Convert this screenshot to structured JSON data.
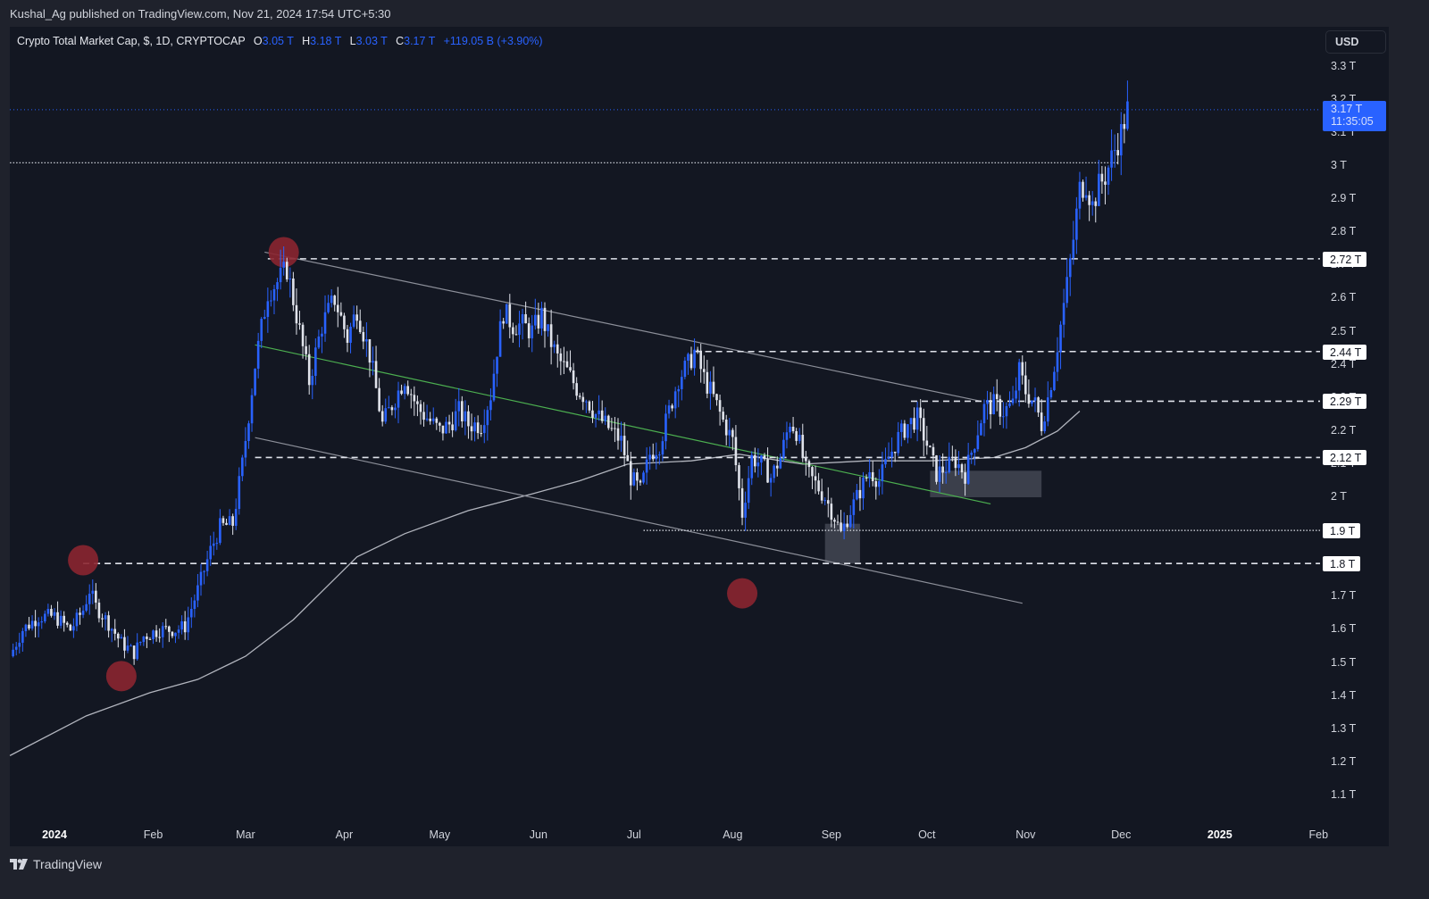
{
  "publisher": "Kushal_Ag published on TradingView.com, Nov 21, 2024 17:54 UTC+5:30",
  "legend": {
    "symbol": "Crypto Total Market Cap, $, 1D, CRYPTOCAP",
    "open_label": "O",
    "open": "3.05 T",
    "high_label": "H",
    "high": "3.18 T",
    "low_label": "L",
    "low": "3.03 T",
    "close_label": "C",
    "close": "3.17 T",
    "change": "+119.05 B (+3.90%)"
  },
  "currency_button": "USD",
  "last_price_tag": {
    "price": "3.17 T",
    "countdown": "11:35:05"
  },
  "colors": {
    "background": "#131722",
    "frame": "#1f222c",
    "up_candle": "#2962ff",
    "down_candle": "#e0e3eb",
    "marker": "#8b2530",
    "ma_line": "#b2b5be",
    "channel_line": "#8c8f99",
    "mid_line": "#4caf50",
    "level_line": "#e0e3eb",
    "zone_box": "#4a4e59"
  },
  "footer": {
    "brand": "TradingView"
  },
  "chart_data": {
    "type": "candlestick",
    "title": "Crypto Total Market Cap, $, 1D, CRYPTOCAP",
    "xlabel": "",
    "ylabel": "USD",
    "ylim": [
      1.05,
      3.35
    ],
    "y_ticks": [
      "3.3 T",
      "3.2 T",
      "3.1 T",
      "3 T",
      "2.9 T",
      "2.8 T",
      "2.7 T",
      "2.6 T",
      "2.5 T",
      "2.4 T",
      "2.3 T",
      "2.2 T",
      "2.1 T",
      "2 T",
      "1.9 T",
      "1.8 T",
      "1.7 T",
      "1.6 T",
      "1.5 T",
      "1.4 T",
      "1.3 T",
      "1.2 T",
      "1.1 T"
    ],
    "y_tick_values": [
      3.3,
      3.2,
      3.1,
      3.0,
      2.9,
      2.8,
      2.7,
      2.6,
      2.5,
      2.4,
      2.3,
      2.2,
      2.1,
      2.0,
      1.9,
      1.8,
      1.7,
      1.6,
      1.5,
      1.4,
      1.3,
      1.2,
      1.1
    ],
    "x_ticks": [
      {
        "label": "2024",
        "day": 0,
        "bold": true
      },
      {
        "label": "Feb",
        "day": 31
      },
      {
        "label": "Mar",
        "day": 60
      },
      {
        "label": "Apr",
        "day": 91
      },
      {
        "label": "May",
        "day": 121
      },
      {
        "label": "Jun",
        "day": 152
      },
      {
        "label": "Jul",
        "day": 182
      },
      {
        "label": "Aug",
        "day": 213
      },
      {
        "label": "Sep",
        "day": 244
      },
      {
        "label": "Oct",
        "day": 274
      },
      {
        "label": "Nov",
        "day": 305
      },
      {
        "label": "Dec",
        "day": 335
      },
      {
        "label": "2025",
        "day": 366,
        "bold": true
      },
      {
        "label": "Feb",
        "day": 397
      }
    ],
    "close_path": [
      [
        -14,
        1.52
      ],
      [
        -10,
        1.6
      ],
      [
        -5,
        1.64
      ],
      [
        0,
        1.64
      ],
      [
        5,
        1.6
      ],
      [
        9,
        1.66
      ],
      [
        11,
        1.72
      ],
      [
        13,
        1.67
      ],
      [
        17,
        1.62
      ],
      [
        21,
        1.56
      ],
      [
        25,
        1.53
      ],
      [
        28,
        1.58
      ],
      [
        33,
        1.6
      ],
      [
        38,
        1.6
      ],
      [
        41,
        1.61
      ],
      [
        45,
        1.72
      ],
      [
        49,
        1.84
      ],
      [
        52,
        1.91
      ],
      [
        56,
        1.92
      ],
      [
        59,
        2.1
      ],
      [
        63,
        2.4
      ],
      [
        67,
        2.62
      ],
      [
        70,
        2.65
      ],
      [
        73,
        2.69
      ],
      [
        76,
        2.55
      ],
      [
        80,
        2.35
      ],
      [
        84,
        2.52
      ],
      [
        88,
        2.6
      ],
      [
        92,
        2.48
      ],
      [
        95,
        2.57
      ],
      [
        99,
        2.43
      ],
      [
        103,
        2.22
      ],
      [
        107,
        2.3
      ],
      [
        110,
        2.36
      ],
      [
        114,
        2.27
      ],
      [
        118,
        2.23
      ],
      [
        121,
        2.2
      ],
      [
        124,
        2.22
      ],
      [
        127,
        2.26
      ],
      [
        130,
        2.22
      ],
      [
        134,
        2.22
      ],
      [
        137,
        2.31
      ],
      [
        139,
        2.45
      ],
      [
        141,
        2.56
      ],
      [
        144,
        2.52
      ],
      [
        147,
        2.52
      ],
      [
        150,
        2.5
      ],
      [
        153,
        2.55
      ],
      [
        155,
        2.49
      ],
      [
        158,
        2.42
      ],
      [
        161,
        2.38
      ],
      [
        164,
        2.33
      ],
      [
        167,
        2.3
      ],
      [
        170,
        2.25
      ],
      [
        174,
        2.21
      ],
      [
        178,
        2.17
      ],
      [
        181,
        2.06
      ],
      [
        184,
        2.02
      ],
      [
        187,
        2.13
      ],
      [
        190,
        2.16
      ],
      [
        193,
        2.26
      ],
      [
        196,
        2.36
      ],
      [
        199,
        2.4
      ],
      [
        201,
        2.44
      ],
      [
        204,
        2.36
      ],
      [
        207,
        2.3
      ],
      [
        210,
        2.23
      ],
      [
        213,
        2.17
      ],
      [
        216,
        1.95
      ],
      [
        219,
        2.12
      ],
      [
        222,
        2.1
      ],
      [
        225,
        2.06
      ],
      [
        228,
        2.12
      ],
      [
        231,
        2.23
      ],
      [
        233,
        2.2
      ],
      [
        236,
        2.08
      ],
      [
        239,
        2.04
      ],
      [
        242,
        2.0
      ],
      [
        245,
        1.94
      ],
      [
        247,
        1.89
      ],
      [
        250,
        1.96
      ],
      [
        253,
        2.02
      ],
      [
        256,
        2.08
      ],
      [
        259,
        2.05
      ],
      [
        262,
        2.12
      ],
      [
        265,
        2.18
      ],
      [
        268,
        2.22
      ],
      [
        271,
        2.24
      ],
      [
        274,
        2.16
      ],
      [
        277,
        2.07
      ],
      [
        280,
        2.09
      ],
      [
        283,
        2.11
      ],
      [
        286,
        2.07
      ],
      [
        289,
        2.17
      ],
      [
        292,
        2.27
      ],
      [
        295,
        2.28
      ],
      [
        298,
        2.26
      ],
      [
        301,
        2.28
      ],
      [
        303,
        2.38
      ],
      [
        305,
        2.32
      ],
      [
        308,
        2.28
      ],
      [
        310,
        2.22
      ],
      [
        312,
        2.3
      ],
      [
        314,
        2.4
      ],
      [
        316,
        2.52
      ],
      [
        318,
        2.64
      ],
      [
        320,
        2.78
      ],
      [
        322,
        2.93
      ],
      [
        324,
        2.95
      ],
      [
        326,
        2.88
      ],
      [
        328,
        2.94
      ],
      [
        330,
        2.97
      ],
      [
        333,
        3.05
      ],
      [
        335,
        3.1
      ],
      [
        337,
        3.17
      ]
    ],
    "horizontal_levels": [
      {
        "price": 2.72,
        "label": "2.72 T",
        "style": "dashed",
        "from_day": 67
      },
      {
        "price": 2.44,
        "label": "2.44 T",
        "style": "dashed",
        "from_day": 201
      },
      {
        "price": 2.29,
        "label": "2.29 T",
        "style": "dashed",
        "from_day": 269
      },
      {
        "price": 2.12,
        "label": "2.12 T",
        "style": "dashed",
        "from_day": 63
      },
      {
        "price": 1.9,
        "label": "1.9 T",
        "style": "dotted",
        "from_day": 185
      },
      {
        "price": 1.8,
        "label": "1.8 T",
        "style": "dashed",
        "from_day": 9
      },
      {
        "price": 3.01,
        "label": "",
        "style": "dotted",
        "from_day": -14,
        "to_day": 334
      }
    ],
    "channel": {
      "upper": [
        [
          66,
          2.74
        ],
        [
          291,
          2.29
        ]
      ],
      "lower": [
        [
          63,
          2.18
        ],
        [
          304,
          1.68
        ]
      ],
      "mid": [
        [
          63,
          2.46
        ],
        [
          294,
          1.98
        ]
      ]
    },
    "zones": [
      {
        "from_day": 242,
        "to_day": 253,
        "low": 1.8,
        "high": 1.92
      },
      {
        "from_day": 275,
        "to_day": 310,
        "low": 2.0,
        "high": 2.08
      }
    ],
    "markers": [
      {
        "day": 9,
        "price": 1.81
      },
      {
        "day": 21,
        "price": 1.46
      },
      {
        "day": 72,
        "price": 2.74
      },
      {
        "day": 216,
        "price": 1.71
      }
    ],
    "moving_average": [
      [
        -14,
        1.22
      ],
      [
        10,
        1.34
      ],
      [
        30,
        1.41
      ],
      [
        45,
        1.45
      ],
      [
        60,
        1.52
      ],
      [
        75,
        1.63
      ],
      [
        95,
        1.82
      ],
      [
        110,
        1.89
      ],
      [
        130,
        1.96
      ],
      [
        150,
        2.01
      ],
      [
        165,
        2.05
      ],
      [
        180,
        2.1
      ],
      [
        200,
        2.11
      ],
      [
        215,
        2.13
      ],
      [
        235,
        2.1
      ],
      [
        255,
        2.11
      ],
      [
        275,
        2.11
      ],
      [
        295,
        2.12
      ],
      [
        305,
        2.15
      ],
      [
        315,
        2.2
      ],
      [
        322,
        2.26
      ]
    ],
    "last_price": 3.17
  }
}
